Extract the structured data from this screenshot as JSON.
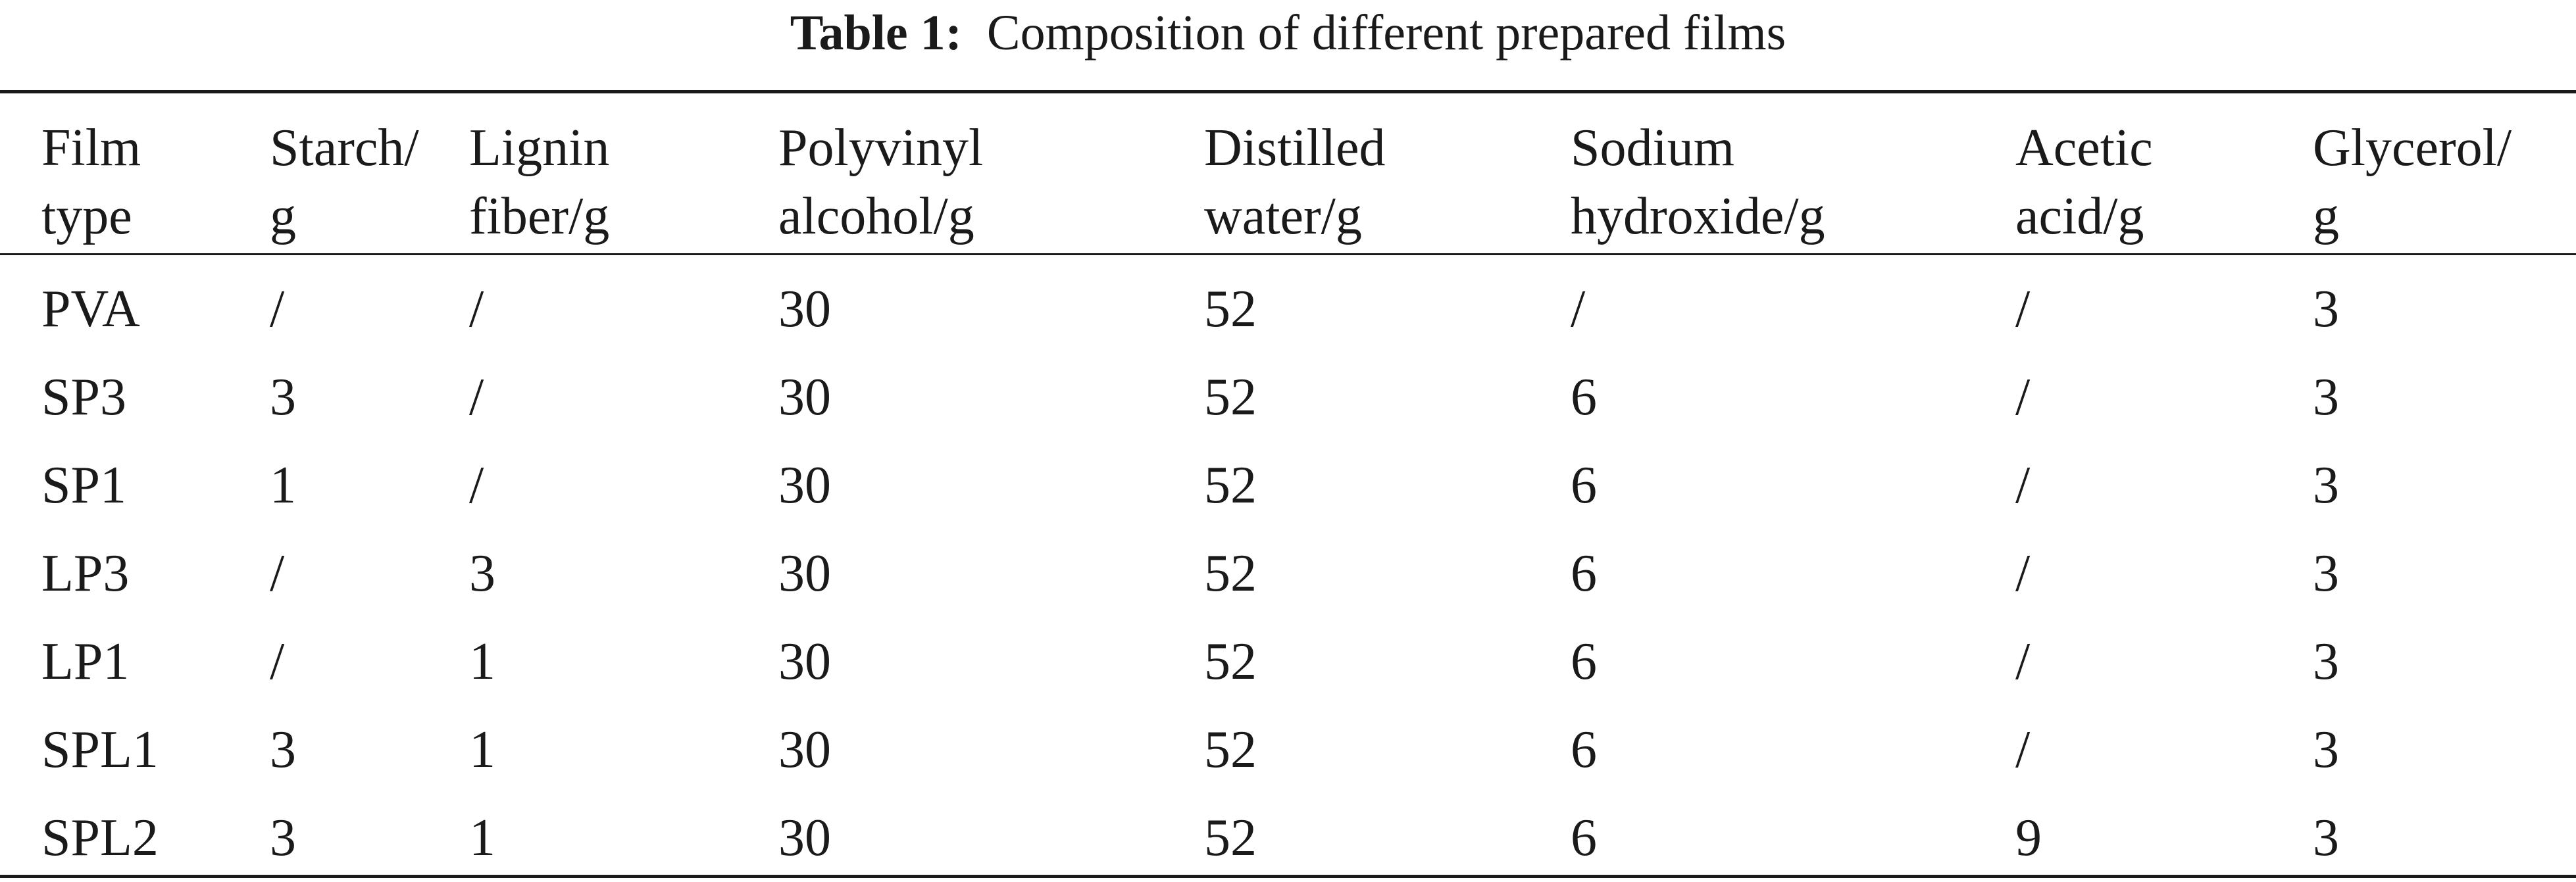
{
  "caption": {
    "label": "Table 1:",
    "text": "Composition of different prepared films"
  },
  "table": {
    "headers": [
      [
        "Film",
        "type"
      ],
      [
        "Starch/",
        "g"
      ],
      [
        "Lignin",
        "fiber/g"
      ],
      [
        "Polyvinyl",
        "alcohol/g"
      ],
      [
        "Distilled",
        "water/g"
      ],
      [
        "Sodium",
        "hydroxide/g"
      ],
      [
        "Acetic",
        "acid/g"
      ],
      [
        "Glycerol/",
        "g"
      ]
    ],
    "rows": [
      [
        "PVA",
        "/",
        "/",
        "30",
        "52",
        "/",
        "/",
        "3"
      ],
      [
        "SP3",
        "3",
        "/",
        "30",
        "52",
        "6",
        "/",
        "3"
      ],
      [
        "SP1",
        "1",
        "/",
        "30",
        "52",
        "6",
        "/",
        "3"
      ],
      [
        "LP3",
        "/",
        "3",
        "30",
        "52",
        "6",
        "/",
        "3"
      ],
      [
        "LP1",
        "/",
        "1",
        "30",
        "52",
        "6",
        "/",
        "3"
      ],
      [
        "SPL1",
        "3",
        "1",
        "30",
        "52",
        "6",
        "/",
        "3"
      ],
      [
        "SPL2",
        "3",
        "1",
        "30",
        "52",
        "6",
        "9",
        "3"
      ]
    ]
  }
}
